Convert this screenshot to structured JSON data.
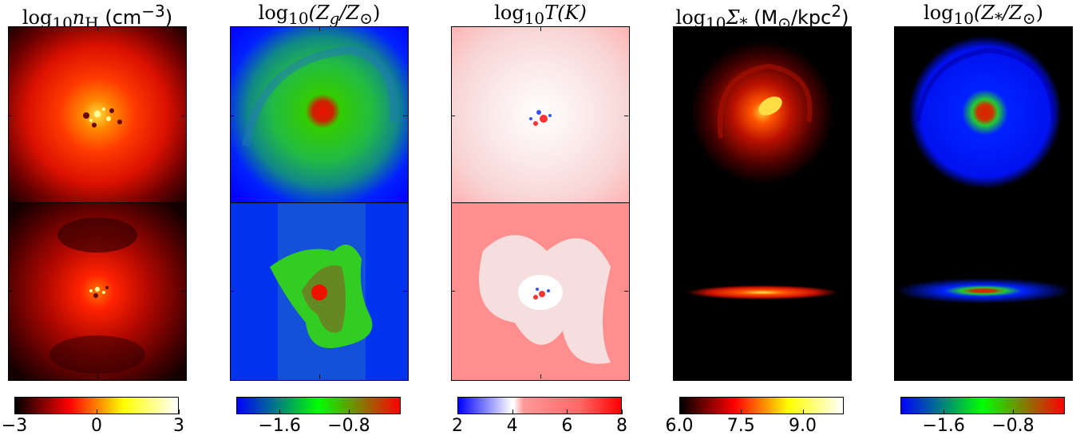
{
  "panels": [
    {
      "id": "density",
      "title_math": "log",
      "title_sub": "10",
      "title_var": "n",
      "title_var_sub": "H",
      "title_unit": "(cm",
      "title_unit_sup": "−3",
      "title_unit_close": ")",
      "colormap": [
        "#000000",
        "#ff0000",
        "#ffff00",
        "#ffffff"
      ],
      "ticks": [
        {
          "label": "−3",
          "value": -3
        },
        {
          "label": "0",
          "value": 0
        },
        {
          "label": "3",
          "value": 3
        }
      ],
      "range": [
        -3,
        3
      ]
    },
    {
      "id": "gas-metallicity",
      "title_math": "log",
      "title_sub": "10",
      "title_expr": "(Z",
      "title_expr_sub": "g",
      "title_expr_rest": "/Z",
      "title_expr_sub2": "⊙",
      "title_expr_close": ")",
      "colormap": [
        "#0000ff",
        "#00ff00",
        "#ff0000"
      ],
      "ticks": [
        {
          "label": "−1.6",
          "value": -1.6
        },
        {
          "label": "−0.8",
          "value": -0.8
        }
      ],
      "range": [
        -2.1,
        -0.2
      ]
    },
    {
      "id": "temperature",
      "title_math": "log",
      "title_sub": "10",
      "title_expr": "T(K)",
      "colormap": [
        "#0000ff",
        "#ffffff",
        "#ff9999",
        "#ff0000"
      ],
      "ticks": [
        {
          "label": "2",
          "value": 2
        },
        {
          "label": "4",
          "value": 4
        },
        {
          "label": "6",
          "value": 6
        },
        {
          "label": "8",
          "value": 8
        }
      ],
      "range": [
        2,
        8
      ]
    },
    {
      "id": "stellar-surface-density",
      "title_math": "log",
      "title_sub": "10",
      "title_expr": "Σ",
      "title_expr_sub": "*",
      "title_unit": "(M",
      "title_unit_sub": "⊙",
      "title_unit_rest": "/kpc",
      "title_unit_sup": "2",
      "title_unit_close": ")",
      "colormap": [
        "#000000",
        "#ff0000",
        "#ffff00",
        "#ffffff"
      ],
      "ticks": [
        {
          "label": "6.0",
          "value": 6.0
        },
        {
          "label": "7.5",
          "value": 7.5
        },
        {
          "label": "9.0",
          "value": 9.0
        }
      ],
      "range": [
        6.0,
        10.0
      ]
    },
    {
      "id": "stellar-metallicity",
      "title_math": "log",
      "title_sub": "10",
      "title_expr": "(Z",
      "title_expr_sub": "*",
      "title_expr_rest": "/Z",
      "title_expr_sub2": "⊙",
      "title_expr_close": ")",
      "colormap": [
        "#0000ff",
        "#00ff00",
        "#ff0000"
      ],
      "ticks": [
        {
          "label": "−1.6",
          "value": -1.6
        },
        {
          "label": "−0.8",
          "value": -0.8
        }
      ],
      "range": [
        -2.1,
        -0.2
      ]
    }
  ]
}
